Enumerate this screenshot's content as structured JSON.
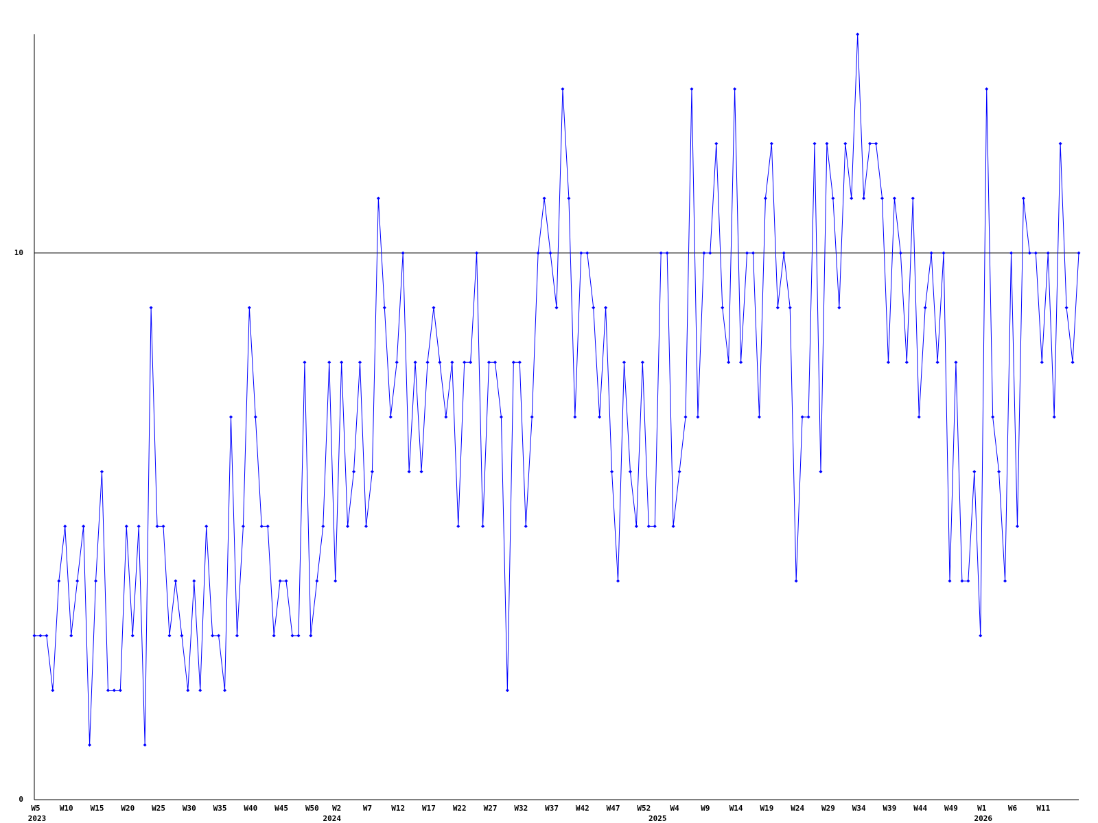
{
  "chart_data": {
    "type": "line",
    "categories": [
      "W5",
      null,
      null,
      null,
      null,
      "W10",
      null,
      null,
      null,
      null,
      "W15",
      null,
      null,
      null,
      null,
      "W20",
      null,
      null,
      null,
      null,
      "W25",
      null,
      null,
      null,
      null,
      "W30",
      null,
      null,
      null,
      null,
      "W35",
      null,
      null,
      null,
      null,
      "W40",
      null,
      null,
      null,
      null,
      "W45",
      null,
      null,
      null,
      null,
      "W50",
      null,
      null,
      null,
      "W2",
      null,
      null,
      null,
      null,
      "W7",
      null,
      null,
      null,
      null,
      "W12",
      null,
      null,
      null,
      null,
      "W17",
      null,
      null,
      null,
      null,
      "W22",
      null,
      null,
      null,
      null,
      "W27",
      null,
      null,
      null,
      null,
      "W32",
      null,
      null,
      null,
      null,
      "W37",
      null,
      null,
      null,
      null,
      "W42",
      null,
      null,
      null,
      null,
      "W47",
      null,
      null,
      null,
      null,
      "W52",
      null,
      null,
      null,
      null,
      "W4",
      null,
      null,
      null,
      null,
      "W9",
      null,
      null,
      null,
      null,
      "W14",
      null,
      null,
      null,
      null,
      "W19",
      null,
      null,
      null,
      null,
      "W24",
      null,
      null,
      null,
      null,
      "W29",
      null,
      null,
      null,
      null,
      "W34",
      null,
      null,
      null,
      null,
      "W39",
      null,
      null,
      null,
      null,
      "W44",
      null,
      null,
      null,
      null,
      "W49",
      null,
      null,
      null,
      null,
      "W1",
      null,
      null,
      null,
      null,
      "W6",
      null,
      null,
      null,
      null,
      "W11",
      null,
      null,
      null,
      null,
      null,
      null
    ],
    "years": [
      "2023",
      null,
      null,
      null,
      null,
      null,
      null,
      null,
      null,
      null,
      null,
      null,
      null,
      null,
      null,
      null,
      null,
      null,
      null,
      null,
      null,
      null,
      null,
      null,
      null,
      null,
      null,
      null,
      null,
      null,
      null,
      null,
      null,
      null,
      null,
      null,
      null,
      null,
      null,
      null,
      null,
      null,
      null,
      null,
      null,
      null,
      null,
      null,
      "2024",
      null,
      null,
      null,
      null,
      null,
      null,
      null,
      null,
      null,
      null,
      null,
      null,
      null,
      null,
      null,
      null,
      null,
      null,
      null,
      null,
      null,
      null,
      null,
      null,
      null,
      null,
      null,
      null,
      null,
      null,
      null,
      null,
      null,
      null,
      null,
      null,
      null,
      null,
      null,
      null,
      null,
      null,
      null,
      null,
      null,
      null,
      null,
      null,
      null,
      null,
      null,
      null,
      "2025",
      null,
      null,
      null,
      null,
      null,
      null,
      null,
      null,
      null,
      null,
      null,
      null,
      null,
      null,
      null,
      null,
      null,
      null,
      null,
      null,
      null,
      null,
      null,
      null,
      null,
      null,
      null,
      null,
      null,
      null,
      null,
      null,
      null,
      null,
      null,
      null,
      null,
      null,
      null,
      null,
      null,
      null,
      null,
      null,
      null,
      null,
      null,
      null,
      null,
      null,
      null,
      null,
      "2026",
      null,
      null,
      null,
      null,
      null,
      null,
      null,
      null,
      null,
      null,
      null,
      null,
      null,
      null,
      null,
      null
    ],
    "values": [
      3,
      3,
      3,
      2,
      4,
      5,
      3,
      4,
      5,
      1,
      4,
      6,
      2,
      2,
      2,
      5,
      3,
      5,
      1,
      9,
      5,
      5,
      3,
      4,
      3,
      2,
      4,
      2,
      5,
      3,
      3,
      2,
      7,
      3,
      5,
      9,
      7,
      5,
      5,
      3,
      4,
      4,
      3,
      3,
      8,
      3,
      4,
      5,
      8,
      4,
      8,
      5,
      6,
      8,
      5,
      6,
      11,
      9,
      7,
      8,
      10,
      6,
      8,
      6,
      8,
      9,
      8,
      7,
      8,
      5,
      8,
      8,
      10,
      5,
      8,
      8,
      7,
      2,
      8,
      8,
      5,
      7,
      10,
      11,
      10,
      9,
      13,
      11,
      7,
      10,
      10,
      9,
      7,
      9,
      6,
      4,
      8,
      6,
      5,
      8,
      5,
      5,
      10,
      10,
      5,
      6,
      7,
      13,
      7,
      10,
      10,
      12,
      9,
      8,
      13,
      8,
      10,
      10,
      7,
      11,
      12,
      9,
      10,
      9,
      4,
      7,
      7,
      12,
      6,
      12,
      11,
      9,
      12,
      11,
      14,
      11,
      12,
      12,
      11,
      8,
      11,
      10,
      8,
      11,
      7,
      9,
      10,
      8,
      10,
      4,
      8,
      4,
      4,
      6,
      3,
      13,
      7,
      6,
      4,
      10,
      5,
      11,
      10,
      10,
      8,
      10,
      7,
      12,
      9,
      8,
      10
    ],
    "color": "#0000ff",
    "ylim": [
      0,
      14
    ],
    "yticks": [
      0,
      10
    ],
    "grid": true
  }
}
